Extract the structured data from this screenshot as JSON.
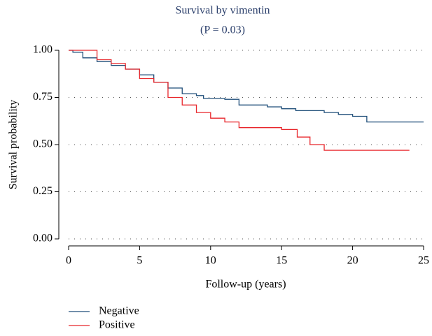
{
  "chart_data": {
    "type": "step",
    "title": "Survival by vimentin",
    "subtitle": "(P = 0.03)",
    "x_label": "Follow-up (years)",
    "y_label": "Survival probability",
    "xlim": [
      0,
      25
    ],
    "xticks": [
      0,
      5,
      10,
      15,
      20,
      25
    ],
    "ylim": [
      0,
      1
    ],
    "yticks": [
      {
        "value": 0,
        "label": "0.00"
      },
      {
        "value": 0.25,
        "label": "0.25"
      },
      {
        "value": 0.5,
        "label": "0.50"
      },
      {
        "value": 0.75,
        "label": "0.75"
      },
      {
        "value": 1,
        "label": "1.00"
      }
    ],
    "grid": true,
    "series": [
      {
        "name": "Negative",
        "color": "#1f4e79",
        "x": [
          0,
          0.3,
          1,
          2,
          3,
          4,
          5,
          6,
          7,
          8,
          9,
          9.5,
          11,
          12,
          14,
          15,
          16,
          18,
          19,
          20,
          21,
          25
        ],
        "values": [
          1,
          0.99,
          0.96,
          0.94,
          0.92,
          0.9,
          0.87,
          0.83,
          0.8,
          0.77,
          0.76,
          0.745,
          0.74,
          0.71,
          0.7,
          0.69,
          0.68,
          0.67,
          0.66,
          0.65,
          0.62,
          0.62
        ]
      },
      {
        "name": "Positive",
        "color": "#e8262b",
        "x": [
          0,
          2,
          3,
          4,
          5,
          6,
          7,
          8,
          9,
          10,
          11,
          12,
          15,
          16.1,
          17,
          18,
          24
        ],
        "values": [
          1,
          0.95,
          0.93,
          0.9,
          0.85,
          0.83,
          0.75,
          0.71,
          0.67,
          0.64,
          0.62,
          0.59,
          0.58,
          0.54,
          0.5,
          0.47,
          0.47
        ]
      }
    ]
  }
}
